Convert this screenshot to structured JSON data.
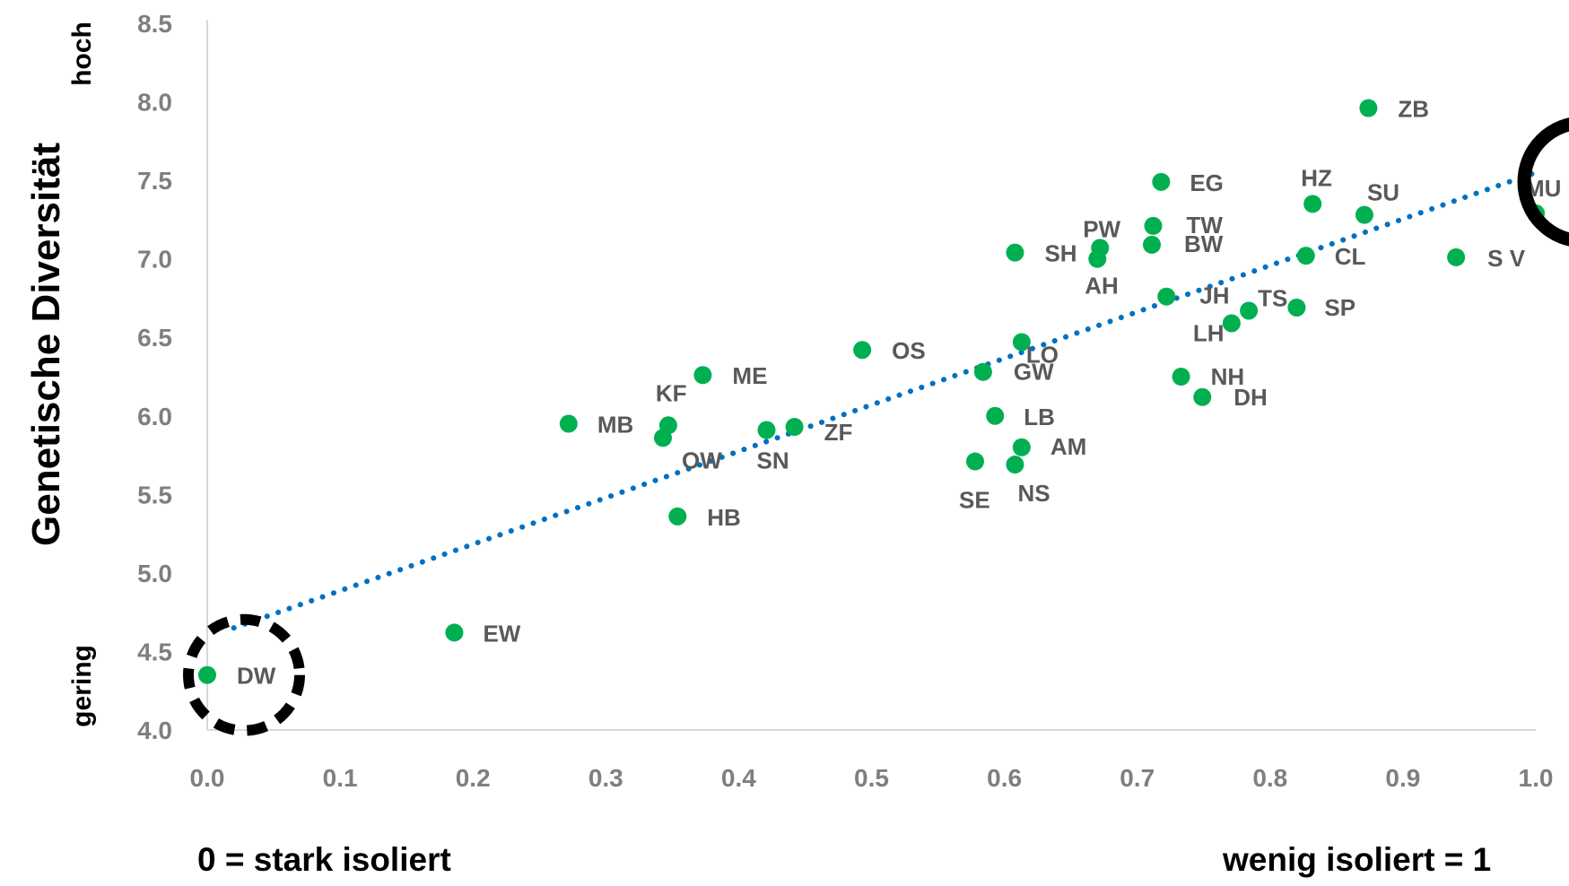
{
  "chart_data": {
    "type": "scatter",
    "ylabel": "Genetische Diversität",
    "y_high_label": "hoch",
    "y_low_label": "gering",
    "x_left_label": "0 = stark isoliert",
    "x_right_label": "wenig isoliert = 1",
    "xlim": [
      0.0,
      1.0
    ],
    "ylim": [
      4.0,
      8.5
    ],
    "x_ticks": [
      "0.0",
      "0.1",
      "0.2",
      "0.3",
      "0.4",
      "0.5",
      "0.6",
      "0.7",
      "0.8",
      "0.9",
      "1.0"
    ],
    "y_ticks": [
      "4.0",
      "4.5",
      "5.0",
      "5.5",
      "6.0",
      "6.5",
      "7.0",
      "7.5",
      "8.0",
      "8.5"
    ],
    "grid": false,
    "point_color": "#00b050",
    "trend_color": "#0070c0",
    "trendline": {
      "style": "dotted",
      "x": [
        0.02,
        1.0
      ],
      "y": [
        4.65,
        7.55
      ]
    },
    "points": [
      {
        "label": "DW",
        "x": 0.0,
        "y": 4.35
      },
      {
        "label": "EW",
        "x": 0.186,
        "y": 4.62
      },
      {
        "label": "MB",
        "x": 0.272,
        "y": 5.95
      },
      {
        "label": "OW",
        "x": 0.343,
        "y": 5.86
      },
      {
        "label": "KF",
        "x": 0.347,
        "y": 5.94
      },
      {
        "label": "HB",
        "x": 0.354,
        "y": 5.36
      },
      {
        "label": "ME",
        "x": 0.373,
        "y": 6.26
      },
      {
        "label": "SN",
        "x": 0.421,
        "y": 5.91
      },
      {
        "label": "ZF",
        "x": 0.442,
        "y": 5.93
      },
      {
        "label": "OS",
        "x": 0.493,
        "y": 6.42
      },
      {
        "label": "SE",
        "x": 0.578,
        "y": 5.71
      },
      {
        "label": "GW",
        "x": 0.584,
        "y": 6.28
      },
      {
        "label": "LB",
        "x": 0.593,
        "y": 6.0
      },
      {
        "label": "SH",
        "x": 0.608,
        "y": 7.04
      },
      {
        "label": "NS",
        "x": 0.608,
        "y": 5.69
      },
      {
        "label": "AM",
        "x": 0.613,
        "y": 5.8
      },
      {
        "label": "LO",
        "x": 0.613,
        "y": 6.47
      },
      {
        "label": "AH",
        "x": 0.67,
        "y": 7.0
      },
      {
        "label": "PW",
        "x": 0.672,
        "y": 7.07
      },
      {
        "label": "BW",
        "x": 0.711,
        "y": 7.09
      },
      {
        "label": "TW",
        "x": 0.712,
        "y": 7.21
      },
      {
        "label": "EG",
        "x": 0.718,
        "y": 7.49
      },
      {
        "label": "JH",
        "x": 0.722,
        "y": 6.76
      },
      {
        "label": "NH",
        "x": 0.733,
        "y": 6.25
      },
      {
        "label": "DH",
        "x": 0.749,
        "y": 6.12
      },
      {
        "label": "LH",
        "x": 0.771,
        "y": 6.59
      },
      {
        "label": "TS",
        "x": 0.784,
        "y": 6.67
      },
      {
        "label": "SP",
        "x": 0.82,
        "y": 6.69
      },
      {
        "label": "CL",
        "x": 0.827,
        "y": 7.02
      },
      {
        "label": "HZ",
        "x": 0.832,
        "y": 7.35
      },
      {
        "label": "SU",
        "x": 0.871,
        "y": 7.28
      },
      {
        "label": "ZB",
        "x": 0.874,
        "y": 7.96
      },
      {
        "label": "S V",
        "x": 0.94,
        "y": 7.01
      },
      {
        "label": "MU",
        "x": 1.0,
        "y": 7.29
      }
    ],
    "highlights": [
      {
        "target": "DW",
        "style": "dashed"
      },
      {
        "target": "MU",
        "style": "solid"
      }
    ]
  }
}
